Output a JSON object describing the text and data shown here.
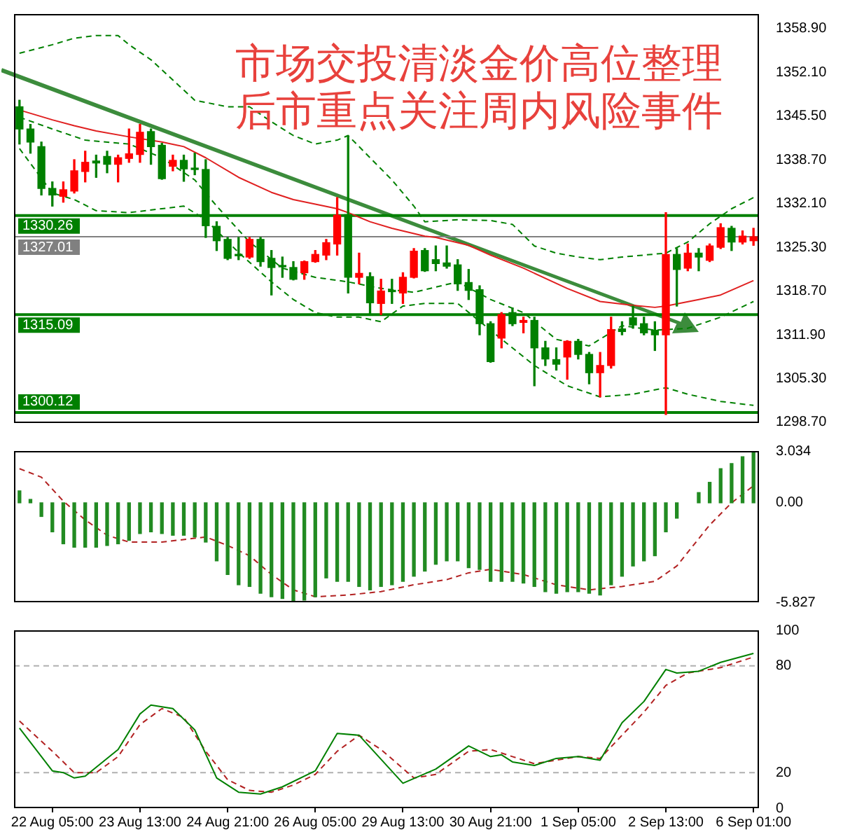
{
  "chart_data": [
    {
      "type": "candlestick",
      "title": "市场交投清淡金价高位整理",
      "subtitle": "后市重点关注周内风险事件",
      "tick_labels": "y",
      "marker": "none",
      "categories": [
        null,
        null,
        null,
        null,
        null,
        null,
        null,
        null,
        null,
        null,
        null,
        null,
        null,
        null,
        null,
        null,
        null,
        null,
        null,
        null,
        null,
        null,
        null,
        null,
        null,
        null,
        null,
        null,
        null,
        null,
        null,
        null,
        null,
        null,
        null,
        null,
        null,
        null,
        null,
        null,
        null,
        null,
        null,
        null,
        null,
        null,
        null,
        null,
        null,
        null,
        null,
        null,
        null,
        null,
        null,
        null,
        null,
        null,
        null,
        null,
        null,
        null,
        null,
        null,
        null,
        null,
        null,
        null
      ],
      "ohlc": [
        [
          1346.9,
          1347.9,
          1341.2,
          1343.5
        ],
        [
          1343.5,
          1344.2,
          1339.8,
          1341.5
        ],
        [
          1340.8,
          1341.5,
          1333.4,
          1334.4
        ],
        [
          1334.4,
          1335.4,
          1331.7,
          1333.4
        ],
        [
          1333.2,
          1335.4,
          1332.3,
          1334.2
        ],
        [
          1334.0,
          1338.8,
          1333.7,
          1337.1
        ],
        [
          1337.0,
          1340.1,
          1335.4,
          1338.4
        ],
        [
          1338.6,
          1339.5,
          1336.1,
          1338.3
        ],
        [
          1339.3,
          1340.1,
          1336.8,
          1338.1
        ],
        [
          1338.1,
          1339.5,
          1335.4,
          1339.1
        ],
        [
          1339.0,
          1343.5,
          1338.4,
          1339.7
        ],
        [
          1339.6,
          1344.2,
          1338.4,
          1343.0
        ],
        [
          1343.1,
          1343.5,
          1338.1,
          1340.8
        ],
        [
          1341.0,
          1341.3,
          1335.8,
          1335.9
        ],
        [
          1337.8,
          1339.5,
          1337.1,
          1338.7
        ],
        [
          1338.7,
          1339.5,
          1335.5,
          1337.4
        ],
        [
          1337.4,
          1339.8,
          1336.5,
          1337.3
        ],
        [
          1337.3,
          1338.8,
          1326.9,
          1328.7
        ],
        [
          1328.6,
          1329.3,
          1324.9,
          1326.4
        ],
        [
          1326.6,
          1326.9,
          1323.5,
          1323.7
        ],
        [
          1324.3,
          1326.9,
          1323.5,
          1324.1
        ],
        [
          1323.9,
          1326.9,
          1323.7,
          1326.6
        ],
        [
          1326.6,
          1326.9,
          1322.5,
          1323.2
        ],
        [
          1323.7,
          1324.9,
          1318.1,
          1322.3
        ],
        [
          1322.6,
          1323.9,
          1320.8,
          1322.4
        ],
        [
          1322.3,
          1323.2,
          1320.4,
          1320.5
        ],
        [
          1321.5,
          1323.3,
          1320.5,
          1323.2
        ],
        [
          1323.2,
          1324.9,
          1323.1,
          1324.3
        ],
        [
          1324.2,
          1326.6,
          1323.5,
          1326.1
        ],
        [
          1325.9,
          1333.0,
          1324.2,
          1330.3
        ],
        [
          1330.4,
          1342.3,
          1318.4,
          1320.8
        ],
        [
          1320.8,
          1324.5,
          1319.8,
          1321.4
        ],
        [
          1320.9,
          1321.5,
          1315.1,
          1316.9
        ],
        [
          1316.8,
          1320.5,
          1315.1,
          1318.7
        ],
        [
          1318.8,
          1320.5,
          1316.8,
          1318.6
        ],
        [
          1318.4,
          1321.5,
          1316.8,
          1320.8
        ],
        [
          1320.8,
          1325.2,
          1320.7,
          1324.8
        ],
        [
          1324.9,
          1325.2,
          1321.7,
          1321.8
        ],
        [
          1323.5,
          1325.6,
          1321.8,
          1322.9
        ],
        [
          1323.0,
          1325.6,
          1322.2,
          1322.5
        ],
        [
          1322.7,
          1323.5,
          1318.8,
          1319.8
        ],
        [
          1320.0,
          1322.0,
          1317.4,
          1318.8
        ],
        [
          1318.9,
          1319.5,
          1312.0,
          1313.7
        ],
        [
          1313.7,
          1314.0,
          1307.8,
          1307.9
        ],
        [
          1311.5,
          1315.4,
          1310.0,
          1315.1
        ],
        [
          1315.4,
          1316.1,
          1313.4,
          1313.7
        ],
        [
          1313.9,
          1314.7,
          1312.3,
          1314.2
        ],
        [
          1314.2,
          1314.7,
          1304.2,
          1310.0
        ],
        [
          1310.0,
          1311.0,
          1307.3,
          1308.3
        ],
        [
          1308.2,
          1310.0,
          1306.6,
          1307.5
        ],
        [
          1308.6,
          1311.1,
          1305.2,
          1311.0
        ],
        [
          1311.0,
          1311.3,
          1308.3,
          1309.0
        ],
        [
          1309.0,
          1309.3,
          1304.5,
          1306.2
        ],
        [
          1306.2,
          1309.3,
          1302.5,
          1307.3
        ],
        [
          1307.3,
          1314.7,
          1306.9,
          1312.8
        ],
        [
          1312.9,
          1314.0,
          1312.0,
          1312.5
        ],
        [
          1314.6,
          1316.4,
          1313.0,
          1313.5
        ],
        [
          1313.7,
          1314.7,
          1312.0,
          1312.3
        ],
        [
          1312.7,
          1314.0,
          1309.6,
          1312.0
        ],
        [
          1312.0,
          1330.7,
          1299.8,
          1324.3
        ],
        [
          1324.3,
          1325.2,
          1316.4,
          1322.0
        ],
        [
          1322.2,
          1325.9,
          1321.8,
          1324.5
        ],
        [
          1324.5,
          1325.2,
          1321.8,
          1323.9
        ],
        [
          1323.4,
          1325.9,
          1323.2,
          1325.6
        ],
        [
          1325.4,
          1329.0,
          1325.2,
          1328.4
        ],
        [
          1328.3,
          1328.6,
          1324.9,
          1326.2
        ],
        [
          1326.2,
          1327.9,
          1325.9,
          1327.1
        ],
        [
          1326.4,
          1328.3,
          1325.7,
          1327.0
        ]
      ],
      "colors": [
        "#008000",
        "#008000",
        "#008000",
        "#008000",
        "#ff0000",
        "#ff0000",
        "#ff0000",
        "#008000",
        "#008000",
        "#ff0000",
        "#ff0000",
        "#ff0000",
        "#008000",
        "#008000",
        "#ff0000",
        "#008000",
        "#008000",
        "#008000",
        "#008000",
        "#008000",
        "#008000",
        "#ff0000",
        "#008000",
        "#008000",
        "#008000",
        "#008000",
        "#ff0000",
        "#ff0000",
        "#ff0000",
        "#ff0000",
        "#008000",
        "#ff0000",
        "#008000",
        "#ff0000",
        "#008000",
        "#ff0000",
        "#ff0000",
        "#008000",
        "#008000",
        "#008000",
        "#008000",
        "#008000",
        "#008000",
        "#008000",
        "#ff0000",
        "#008000",
        "#ff0000",
        "#008000",
        "#008000",
        "#008000",
        "#ff0000",
        "#008000",
        "#008000",
        "#ff0000",
        "#ff0000",
        "#008000",
        "#008000",
        "#008000",
        "#008000",
        "#ff0000",
        "#008000",
        "#ff0000",
        "#008000",
        "#ff0000",
        "#ff0000",
        "#008000",
        "#ff0000",
        "#ff0000"
      ],
      "series": [
        {
          "type": "line",
          "color": "#e02020",
          "values": [
            1346.4,
            null,
            null,
            1344.9,
            null,
            1344.0,
            null,
            1343.2,
            null,
            null,
            1342.3,
            null,
            null,
            1341.5,
            null,
            1340.8,
            null,
            1339.1,
            null,
            null,
            1336.1,
            null,
            null,
            1333.8,
            null,
            1332.7,
            null,
            1332.0,
            null,
            1331.3,
            1330.7,
            null,
            1329.3,
            null,
            1328.3,
            null,
            null,
            1327.1,
            1326.9,
            null,
            null,
            1325.7,
            null,
            1324.2,
            null,
            null,
            1322.2,
            null,
            null,
            null,
            1319.1,
            null,
            null,
            1317.1,
            null,
            null,
            1316.5,
            null,
            1316.2,
            1316.4,
            null,
            null,
            1317.4,
            null,
            1318.1,
            null,
            null,
            1320.3
          ]
        },
        {
          "type": "line",
          "color": "#008000",
          "line_style": "dashed",
          "values": [
            1355.1,
            null,
            null,
            1356.4,
            null,
            1357.4,
            null,
            1357.8,
            null,
            1357.8,
            1356.4,
            null,
            1354.1,
            null,
            1351.0,
            null,
            1347.9,
            null,
            null,
            1346.9,
            null,
            1346.9,
            null,
            1344.6,
            null,
            1342.5,
            null,
            1341.2,
            null,
            1341.8,
            1342.5,
            null,
            1339.1,
            null,
            1335.7,
            null,
            1331.7,
            1329.3,
            null,
            null,
            1329.6,
            null,
            null,
            1329.5,
            null,
            1328.9,
            null,
            1325.6,
            null,
            1324.5,
            null,
            1323.9,
            null,
            1323.5,
            null,
            1323.9,
            null,
            1324.2,
            null,
            1324.5,
            null,
            1326.2,
            null,
            1329.0,
            null,
            1331.3,
            null,
            1333.0
          ]
        },
        {
          "type": "line",
          "color": "#008000",
          "line_style": "dashed",
          "values": [
            1345.3,
            null,
            null,
            1343.5,
            null,
            null,
            1341.8,
            null,
            null,
            null,
            1341.2,
            null,
            null,
            1339.1,
            null,
            null,
            1335.7,
            null,
            1331.7,
            null,
            null,
            1326.2,
            null,
            null,
            1322.2,
            null,
            null,
            1320.8,
            null,
            null,
            1320.1,
            null,
            null,
            1319.1,
            null,
            null,
            1318.5,
            null,
            null,
            null,
            1320.1,
            null,
            null,
            1317.4,
            null,
            null,
            1315.4,
            null,
            null,
            1311.3,
            null,
            null,
            1310.3,
            null,
            null,
            1313.4,
            null,
            null,
            1312.7,
            null,
            null,
            1313.0,
            null,
            null,
            1314.7,
            null,
            null,
            1317.1
          ]
        },
        {
          "type": "line",
          "color": "#008000",
          "line_style": "dashed",
          "values": [
            1340.5,
            null,
            null,
            1333.7,
            null,
            1332.7,
            null,
            1331.0,
            null,
            null,
            1330.7,
            null,
            null,
            1331.3,
            null,
            1331.7,
            null,
            1329.6,
            null,
            null,
            1324.6,
            null,
            null,
            1320.1,
            null,
            1317.4,
            null,
            1315.4,
            null,
            1314.7,
            null,
            1314.7,
            null,
            1314.0,
            null,
            1316.4,
            null,
            1316.8,
            null,
            null,
            1316.8,
            null,
            null,
            1312.7,
            null,
            1310.0,
            null,
            1307.3,
            null,
            null,
            1304.2,
            null,
            null,
            1302.5,
            null,
            null,
            1302.9,
            null,
            null,
            1303.9,
            null,
            1302.9,
            null,
            null,
            1301.8,
            null,
            null,
            1301.2
          ]
        }
      ],
      "ylim": [
        1298.5,
        1361.1
      ],
      "yticks": [
        {
          "value": 1358.9,
          "label": "1358.90"
        },
        {
          "value": 1352.1,
          "label": "1352.10"
        },
        {
          "value": 1345.5,
          "label": "1345.50"
        },
        {
          "value": 1338.7,
          "label": "1338.70"
        },
        {
          "value": 1332.1,
          "label": "1332.10"
        },
        {
          "value": 1325.3,
          "label": "1325.30"
        },
        {
          "value": 1318.7,
          "label": "1318.70"
        },
        {
          "value": 1311.9,
          "label": "1311.90"
        },
        {
          "value": 1305.3,
          "label": "1305.30"
        },
        {
          "value": 1298.7,
          "label": "1298.70"
        }
      ],
      "ref_lines": [
        {
          "axis": "y",
          "value": 1327.01,
          "label": "1327.01",
          "color": "#808080"
        },
        {
          "axis": "y",
          "value": 1330.26,
          "label": "1330.26",
          "color": "#008000"
        },
        {
          "axis": "y",
          "value": 1315.09,
          "label": "1315.09",
          "color": "#008000"
        },
        {
          "axis": "y",
          "value": 1300.12,
          "label": "1300.12",
          "color": "#008000"
        }
      ]
    },
    {
      "type": "bar",
      "tick_labels": "y",
      "marker": "none",
      "categories": [
        null,
        null,
        null,
        null,
        null,
        null,
        null,
        null,
        null,
        null,
        null,
        null,
        null,
        null,
        null,
        null,
        null,
        null,
        null,
        null,
        null,
        null,
        null,
        null,
        null,
        null,
        null,
        null,
        null,
        null,
        null,
        null,
        null,
        null,
        null,
        null,
        null,
        null,
        null,
        null,
        null,
        null,
        null,
        null,
        null,
        null,
        null,
        null,
        null,
        null,
        null,
        null,
        null,
        null,
        null,
        null,
        null,
        null,
        null,
        null,
        null,
        null,
        null,
        null,
        null,
        null,
        null,
        null
      ],
      "series": [
        {
          "type": "bar",
          "color": "#228b22",
          "values": [
            0.7,
            0.2,
            -0.8,
            -1.7,
            -2.4,
            -2.6,
            -2.6,
            -2.6,
            -2.5,
            -2.4,
            -2.2,
            -1.8,
            -1.7,
            -1.8,
            -1.9,
            -1.9,
            -2.0,
            -2.3,
            -3.4,
            -4.2,
            -4.8,
            -4.9,
            -5.3,
            -5.5,
            -5.6,
            -5.8,
            -5.7,
            -5.5,
            -4.4,
            -4.6,
            -4.6,
            -4.9,
            -5.1,
            -4.9,
            -4.8,
            -4.6,
            -4.3,
            -4.0,
            -3.6,
            -3.4,
            -3.4,
            -3.8,
            -3.9,
            -4.6,
            -4.6,
            -4.6,
            -4.7,
            -4.9,
            -5.2,
            -5.3,
            -5.2,
            -5.2,
            -5.3,
            -5.4,
            -4.8,
            -4.3,
            -3.7,
            -3.4,
            -3.1,
            -1.7,
            -0.9,
            null,
            0.6,
            1.2,
            2.0,
            2.3,
            2.7,
            3.0
          ]
        },
        {
          "type": "line",
          "color": "#b22222",
          "line_style": "dashed",
          "values": [
            2.0,
            null,
            1.5,
            null,
            0.1,
            null,
            -1.0,
            null,
            -1.9,
            null,
            -2.3,
            null,
            null,
            -2.3,
            null,
            null,
            null,
            -2.0,
            null,
            -2.5,
            null,
            -3.1,
            null,
            -4.2,
            null,
            -5.1,
            null,
            -5.5,
            null,
            null,
            -5.4,
            null,
            null,
            -5.2,
            null,
            null,
            -4.8,
            null,
            null,
            -4.5,
            null,
            -4.1,
            null,
            -3.9,
            null,
            null,
            -4.2,
            null,
            null,
            -4.8,
            null,
            null,
            -5.1,
            null,
            null,
            -4.9,
            null,
            null,
            -4.6,
            null,
            -3.7,
            null,
            null,
            -1.3,
            null,
            0,
            null,
            1.0
          ]
        }
      ],
      "ylim": [
        -5.827,
        3.034
      ],
      "yticks": [
        3.034,
        {
          "value": 0,
          "label": "0.00"
        },
        -5.827
      ]
    },
    {
      "type": "line",
      "marker": "none",
      "categories": [
        null,
        null,
        null,
        "22 Aug 05:00",
        null,
        null,
        null,
        null,
        null,
        null,
        null,
        "23 Aug 13:00",
        null,
        null,
        null,
        null,
        null,
        null,
        null,
        "24 Aug 21:00",
        null,
        null,
        null,
        null,
        null,
        null,
        null,
        "26 Aug 05:00",
        null,
        null,
        null,
        null,
        null,
        null,
        null,
        "29 Aug 13:00",
        null,
        null,
        null,
        null,
        null,
        null,
        null,
        "30 Aug 21:00",
        null,
        null,
        null,
        null,
        null,
        null,
        null,
        "1 Sep 05:00",
        null,
        null,
        null,
        null,
        null,
        null,
        null,
        "2 Sep 13:00",
        null,
        null,
        null,
        null,
        null,
        null,
        null,
        "6 Sep 01:00"
      ],
      "series": [
        {
          "color": "#008000",
          "values": [
            45,
            null,
            null,
            21,
            20,
            17,
            18,
            null,
            null,
            33,
            null,
            53,
            58,
            null,
            56,
            null,
            44,
            null,
            17,
            null,
            9,
            null,
            8,
            null,
            12,
            null,
            null,
            21,
            null,
            42,
            null,
            41,
            null,
            null,
            null,
            14,
            null,
            null,
            22,
            null,
            null,
            35,
            null,
            29,
            30,
            26,
            null,
            24,
            null,
            28,
            null,
            29,
            null,
            27,
            null,
            48,
            null,
            60,
            null,
            78,
            76,
            null,
            77,
            null,
            82,
            null,
            null,
            87
          ]
        },
        {
          "color": "#b22222",
          "line_style": "dashed",
          "values": [
            49,
            null,
            null,
            32,
            null,
            20,
            null,
            20,
            null,
            29,
            null,
            47,
            null,
            56,
            null,
            51,
            null,
            32,
            null,
            16,
            null,
            10,
            null,
            9,
            null,
            13,
            null,
            19,
            null,
            32,
            null,
            41,
            null,
            33,
            null,
            null,
            17,
            null,
            19,
            null,
            null,
            32,
            null,
            33,
            null,
            29,
            null,
            25,
            null,
            27,
            null,
            29,
            null,
            28,
            null,
            41,
            null,
            54,
            null,
            69,
            null,
            76,
            null,
            null,
            79,
            null,
            null,
            85
          ]
        }
      ],
      "ylim": [
        0,
        100
      ],
      "yticks": [
        0,
        20,
        80,
        100
      ],
      "ref_lines": [
        {
          "axis": "y",
          "value": 20,
          "color": "#b0b0b0",
          "line_style": "dashed"
        },
        {
          "axis": "y",
          "value": 80,
          "color": "#b0b0b0",
          "line_style": "dashed"
        }
      ]
    }
  ]
}
